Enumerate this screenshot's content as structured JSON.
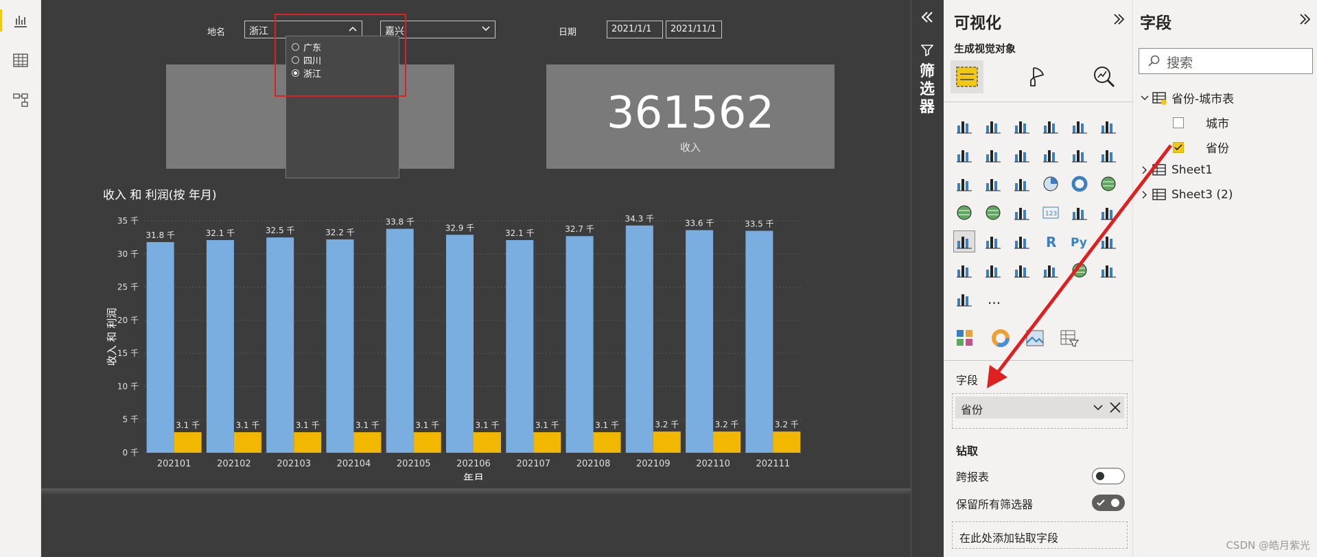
{
  "slicers": {
    "place_label": "地名",
    "province_value": "浙江",
    "city_value": "嘉兴",
    "date_label": "日期",
    "date_start": "2021/1/1",
    "date_end": "2021/11/1",
    "dropdown_options": [
      {
        "label": "广东",
        "selected": false
      },
      {
        "label": "四川",
        "selected": false
      },
      {
        "label": "浙江",
        "selected": true
      }
    ]
  },
  "cards": {
    "left_value": "",
    "right_value": "361562",
    "right_label": "收入"
  },
  "chart_title": "收入 和 利润(按 年月)",
  "chart_data": {
    "type": "bar",
    "title": "收入 和 利润(按 年月)",
    "xlabel": "年月",
    "ylabel": "收入 和 利润",
    "categories": [
      "202101",
      "202102",
      "202103",
      "202104",
      "202105",
      "202106",
      "202107",
      "202108",
      "202109",
      "202110",
      "202111"
    ],
    "series": [
      {
        "values": [
          31.8,
          32.1,
          32.5,
          32.2,
          33.8,
          32.9,
          32.1,
          32.7,
          34.3,
          33.6,
          33.5
        ],
        "color": "#7aaee0",
        "labels": [
          "31.8 千",
          "32.1 千",
          "32.5 千",
          "32.2 千",
          "33.8 千",
          "32.9 千",
          "32.1 千",
          "32.7 千",
          "34.3 千",
          "33.6 千",
          "33.5 千"
        ]
      },
      {
        "values": [
          3.1,
          3.1,
          3.1,
          3.1,
          3.1,
          3.1,
          3.1,
          3.1,
          3.2,
          3.2,
          3.2
        ],
        "color": "#f2b700",
        "labels": [
          "3.1 千",
          "3.1 千",
          "3.1 千",
          "3.1 千",
          "3.1 千",
          "3.1 千",
          "3.1 千",
          "3.1 千",
          "3.2 千",
          "3.2 千",
          "3.2 千"
        ]
      }
    ],
    "yticks": [
      0,
      5,
      10,
      15,
      20,
      25,
      30,
      35
    ],
    "ytick_labels": [
      "0 千",
      "5 千",
      "10 千",
      "15 千",
      "20 千",
      "25 千",
      "30 千",
      "35 千"
    ],
    "ylim": [
      0,
      35
    ],
    "grid": true
  },
  "filter_pane": {
    "label": "筛选器"
  },
  "viz_pane": {
    "title": "可视化",
    "subtitle": "生成视觉对象",
    "fields_section": "字段",
    "field_value": "省份",
    "drill_section": "钻取",
    "cross_report": "跨报表",
    "keep_filters": "保留所有筛选器",
    "drill_placeholder": "在此处添加钻取字段",
    "more": "···"
  },
  "fields_pane": {
    "title": "字段",
    "search_placeholder": "搜索",
    "tables": [
      {
        "name": "省份-城市表",
        "expanded": true,
        "fields": [
          {
            "name": "城市",
            "checked": false
          },
          {
            "name": "省份",
            "checked": true
          }
        ]
      },
      {
        "name": "Sheet1",
        "expanded": false
      },
      {
        "name": "Sheet3 (2)",
        "expanded": false
      }
    ]
  },
  "watermark": "CSDN @皓月紫光",
  "colors": {
    "accent": "#f2c811",
    "annotation": "#e02020",
    "bar_income": "#7aaee0",
    "bar_profit": "#f2b700"
  }
}
